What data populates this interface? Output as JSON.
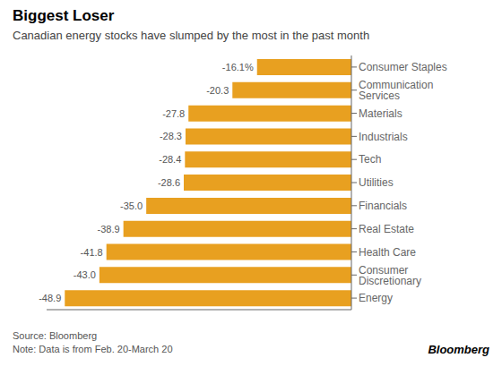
{
  "chart_data": {
    "type": "bar",
    "orientation": "horizontal",
    "title": "Biggest Loser",
    "subtitle": "Canadian energy stocks have slumped by the most in the past month",
    "categories": [
      "Consumer Staples",
      "Communication Services",
      "Materials",
      "Industrials",
      "Tech",
      "Utilities",
      "Financials",
      "Real Estate",
      "Health Care",
      "Consumer Discretionary",
      "Energy"
    ],
    "values": [
      -16.1,
      -20.3,
      -27.8,
      -28.3,
      -28.4,
      -28.6,
      -35.0,
      -38.9,
      -41.8,
      -43.0,
      -48.9
    ],
    "value_labels": [
      "-16.1%",
      "-20.3",
      "-27.8",
      "-28.3",
      "-28.4",
      "-28.6",
      "-35.0",
      "-38.9",
      "-41.8",
      "-43.0",
      "-48.9"
    ],
    "data_labels": true,
    "color": "#E8A020",
    "xlim": [
      -52,
      0
    ],
    "tick_labels": "y",
    "grid": false,
    "annotations": [
      "Source: Bloomberg",
      "Note: Data is from Feb. 20-March 20",
      "Bloomberg"
    ]
  }
}
